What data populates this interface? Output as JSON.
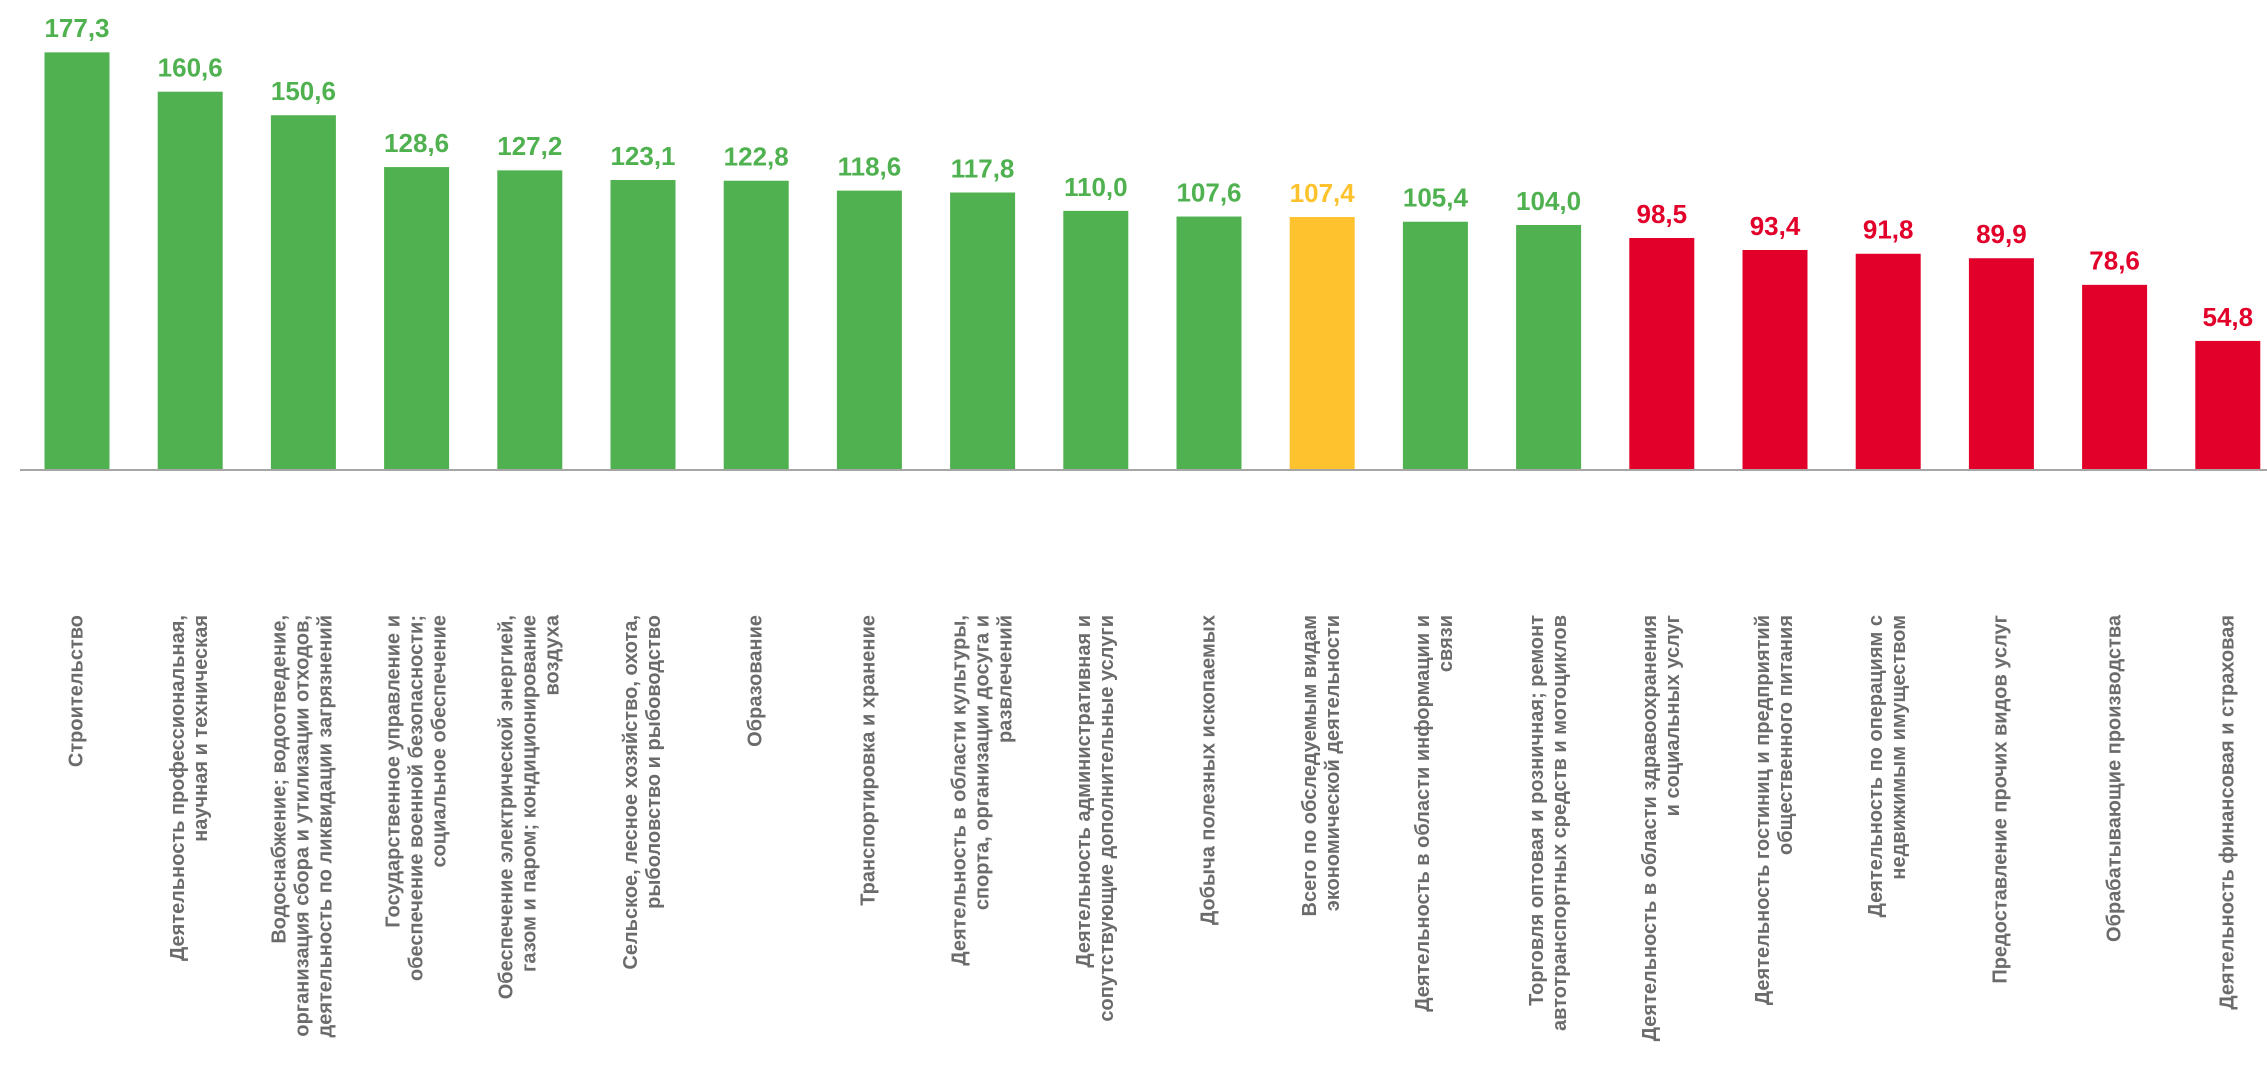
{
  "chart_data": {
    "type": "bar",
    "categories": [
      "Строительство",
      "Деятельность профессиональная,\nнаучная и техническая",
      "Водоснабжение; водоотведение,\nорганизация сбора и утилизации отходов,\nдеятельность по ликвидации загрязнений",
      "Государственное управление и\nобеспечение военной безопасности;\nсоциальное обеспечение",
      "Обеспечение электрической энергией,\nгазом и паром; кондиционирование\nвоздуха",
      "Сельское, лесное хозяйство, охота,\nрыболовство и рыбоводство",
      "Образование",
      "Транспортировка и хранение",
      "Деятельность в области культуры,\nспорта, организации досуга и\nразвлечений",
      "Деятельность административная и\nсопутствующие дополнительные услуги",
      "Добыча полезных ископаемых",
      "Всего по обследуемым видам\nэкономической деятельности",
      "Деятельность в области информации и\nсвязи",
      "Торговля оптовая и розничная; ремонт\nавтотранспортных средств и мотоциклов",
      "Деятельность в области здравоохранения\nи социальных услуг",
      "Деятельность гостиниц и предприятий\nобщественного питания",
      "Деятельность по операциям с\nнедвижимым имуществом",
      "Предоставление прочих видов услуг",
      "Обрабатывающие производства",
      "Деятельность финансовая и страховая"
    ],
    "values": [
      177.3,
      160.6,
      150.6,
      128.6,
      127.2,
      123.1,
      122.8,
      118.6,
      117.8,
      110.0,
      107.6,
      107.4,
      105.4,
      104.0,
      98.5,
      93.4,
      91.8,
      89.9,
      78.6,
      54.8
    ],
    "value_labels": [
      "177,3",
      "160,6",
      "150,6",
      "128,6",
      "127,2",
      "123,1",
      "122,8",
      "118,6",
      "117,8",
      "110,0",
      "107,6",
      "107,4",
      "105,4",
      "104,0",
      "98,5",
      "93,4",
      "91,8",
      "89,9",
      "78,6",
      "54,8"
    ],
    "colors": [
      "#4fb14f",
      "#4fb14f",
      "#4fb14f",
      "#4fb14f",
      "#4fb14f",
      "#4fb14f",
      "#4fb14f",
      "#4fb14f",
      "#4fb14f",
      "#4fb14f",
      "#4fb14f",
      "#fdc22d",
      "#4fb14f",
      "#4fb14f",
      "#e2002a",
      "#e2002a",
      "#e2002a",
      "#e2002a",
      "#e2002a",
      "#e2002a"
    ],
    "ylim": [
      0,
      180
    ]
  }
}
